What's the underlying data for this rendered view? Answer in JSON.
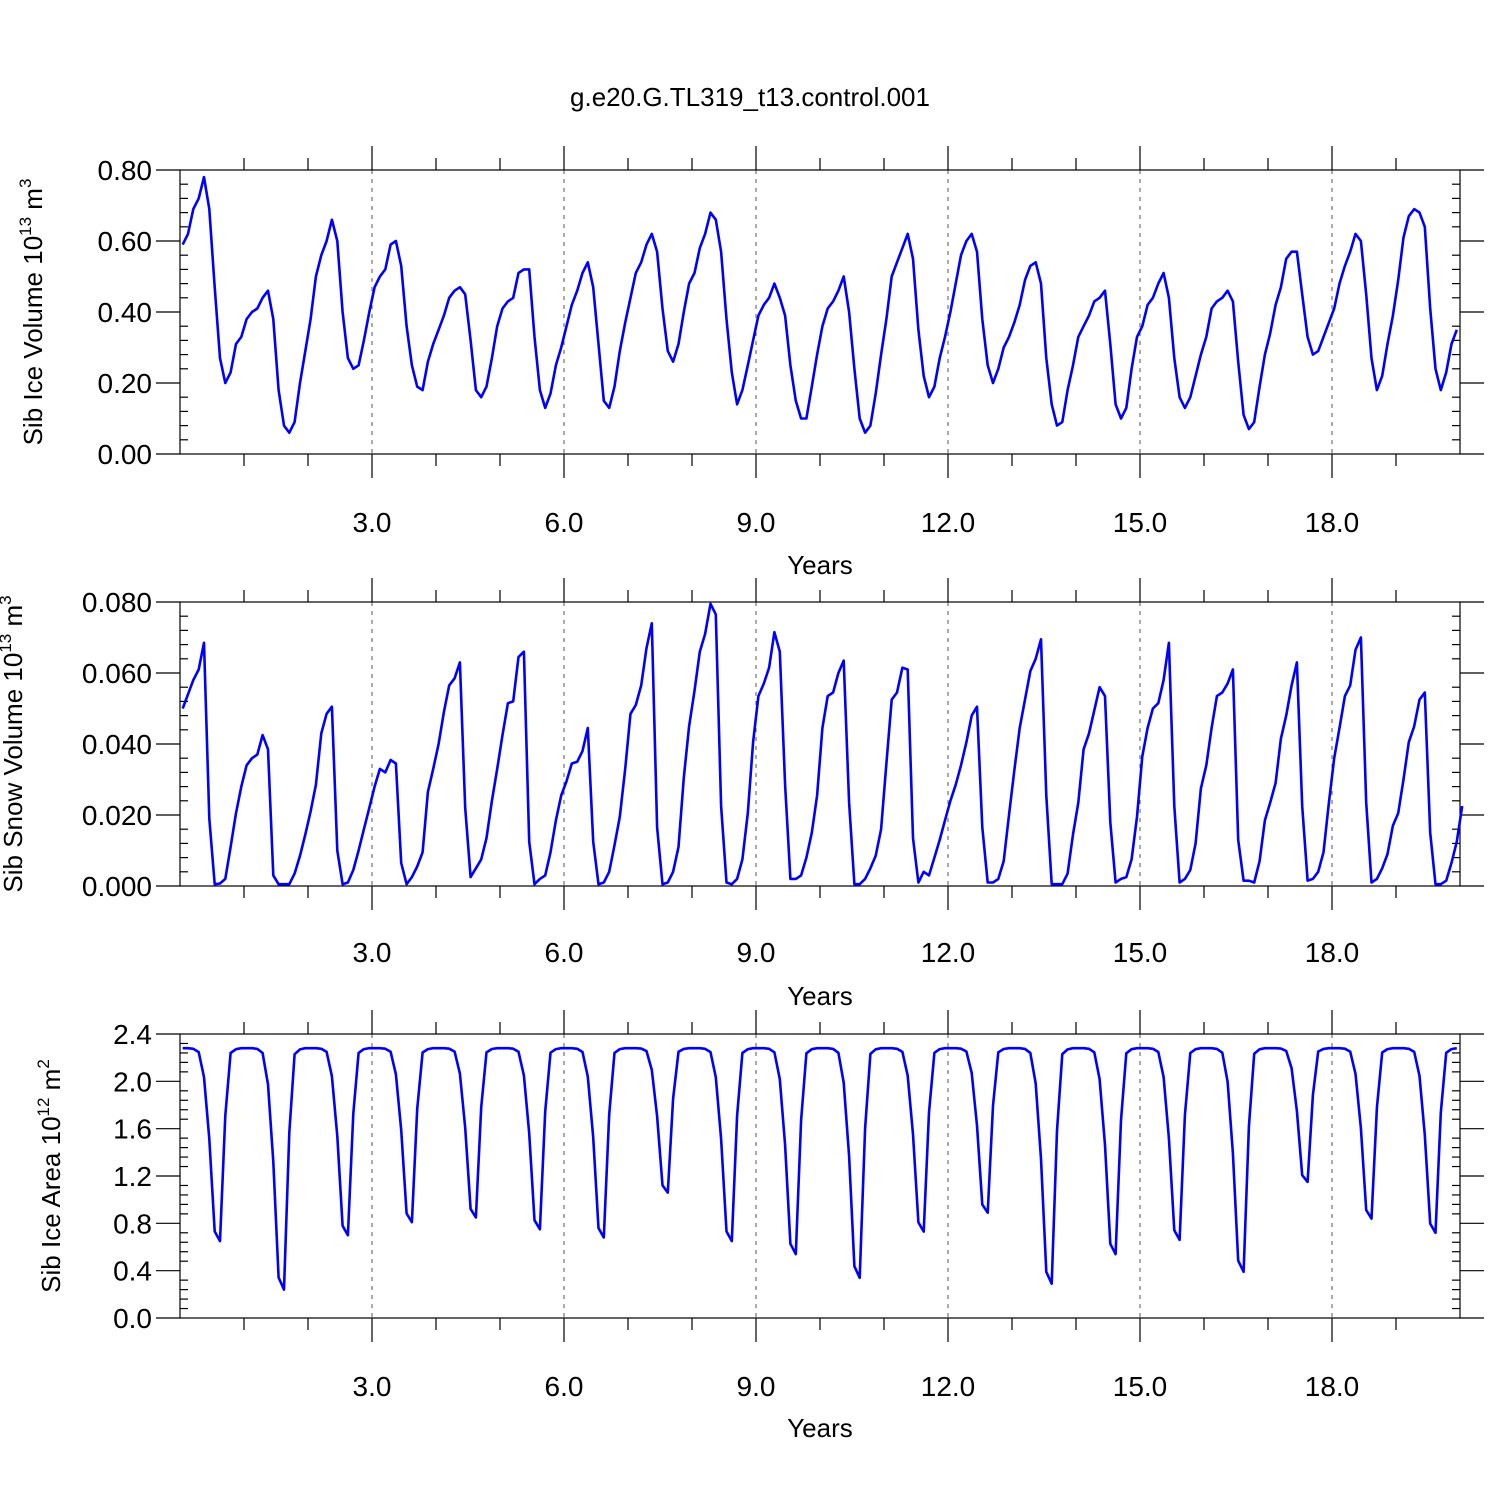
{
  "title": "g.e20.G.TL319_t13.control.001",
  "chart_data": [
    {
      "type": "line",
      "ylabel": "Sib Ice Volume 10",
      "ylabel_exp": "13",
      "ylabel_unit": " m",
      "ylabel_unit_exp": "3",
      "xlabel": "Years",
      "xlim": [
        0,
        20
      ],
      "ylim": [
        0,
        0.8
      ],
      "xticks": [
        3.0,
        6.0,
        9.0,
        12.0,
        15.0,
        18.0
      ],
      "xtick_labels": [
        "3.0",
        "6.0",
        "9.0",
        "12.0",
        "15.0",
        "18.0"
      ],
      "yticks": [
        0,
        0.2,
        0.4,
        0.6,
        0.8
      ],
      "ytick_labels": [
        "0.00",
        "0.20",
        "0.40",
        "0.60",
        "0.80"
      ],
      "vgrid_dashed": true,
      "color": "#0000ff",
      "x_start": 0.0417,
      "x_step": 0.0833,
      "values": [
        0.59,
        0.62,
        0.69,
        0.72,
        0.78,
        0.69,
        0.47,
        0.27,
        0.2,
        0.23,
        0.31,
        0.33,
        0.38,
        0.4,
        0.41,
        0.44,
        0.46,
        0.38,
        0.18,
        0.08,
        0.06,
        0.09,
        0.2,
        0.29,
        0.38,
        0.5,
        0.56,
        0.6,
        0.66,
        0.6,
        0.4,
        0.27,
        0.24,
        0.25,
        0.32,
        0.4,
        0.47,
        0.5,
        0.52,
        0.59,
        0.6,
        0.53,
        0.36,
        0.25,
        0.19,
        0.18,
        0.26,
        0.31,
        0.35,
        0.39,
        0.44,
        0.46,
        0.47,
        0.45,
        0.32,
        0.18,
        0.16,
        0.19,
        0.27,
        0.36,
        0.41,
        0.43,
        0.44,
        0.51,
        0.52,
        0.52,
        0.33,
        0.18,
        0.13,
        0.17,
        0.25,
        0.3,
        0.36,
        0.42,
        0.46,
        0.51,
        0.54,
        0.47,
        0.31,
        0.15,
        0.13,
        0.19,
        0.29,
        0.37,
        0.44,
        0.51,
        0.54,
        0.59,
        0.62,
        0.57,
        0.41,
        0.29,
        0.26,
        0.31,
        0.4,
        0.48,
        0.51,
        0.58,
        0.62,
        0.68,
        0.66,
        0.57,
        0.38,
        0.23,
        0.14,
        0.18,
        0.25,
        0.32,
        0.39,
        0.42,
        0.44,
        0.48,
        0.44,
        0.39,
        0.25,
        0.15,
        0.1,
        0.1,
        0.19,
        0.28,
        0.36,
        0.41,
        0.43,
        0.46,
        0.5,
        0.4,
        0.24,
        0.1,
        0.06,
        0.08,
        0.17,
        0.28,
        0.38,
        0.5,
        0.54,
        0.58,
        0.62,
        0.55,
        0.35,
        0.22,
        0.16,
        0.19,
        0.27,
        0.33,
        0.4,
        0.48,
        0.56,
        0.6,
        0.62,
        0.57,
        0.38,
        0.25,
        0.2,
        0.24,
        0.3,
        0.33,
        0.37,
        0.42,
        0.49,
        0.53,
        0.54,
        0.48,
        0.27,
        0.14,
        0.08,
        0.09,
        0.18,
        0.25,
        0.33,
        0.36,
        0.39,
        0.43,
        0.44,
        0.46,
        0.31,
        0.14,
        0.1,
        0.13,
        0.24,
        0.33,
        0.36,
        0.42,
        0.44,
        0.48,
        0.51,
        0.44,
        0.27,
        0.16,
        0.13,
        0.16,
        0.22,
        0.28,
        0.33,
        0.41,
        0.43,
        0.44,
        0.46,
        0.43,
        0.26,
        0.11,
        0.07,
        0.09,
        0.19,
        0.28,
        0.34,
        0.42,
        0.47,
        0.55,
        0.57,
        0.57,
        0.45,
        0.33,
        0.28,
        0.29,
        0.33,
        0.37,
        0.41,
        0.48,
        0.53,
        0.57,
        0.62,
        0.6,
        0.45,
        0.27,
        0.18,
        0.22,
        0.31,
        0.39,
        0.49,
        0.61,
        0.67,
        0.69,
        0.68,
        0.64,
        0.41,
        0.24,
        0.18,
        0.23,
        0.31,
        0.35
      ]
    },
    {
      "type": "line",
      "ylabel": "Sib Snow Volume 10",
      "ylabel_exp": "13",
      "ylabel_unit": " m",
      "ylabel_unit_exp": "3",
      "xlabel": "Years",
      "xlim": [
        0,
        20
      ],
      "ylim": [
        0,
        0.08
      ],
      "xticks": [
        3.0,
        6.0,
        9.0,
        12.0,
        15.0,
        18.0
      ],
      "xtick_labels": [
        "3.0",
        "6.0",
        "9.0",
        "12.0",
        "15.0",
        "18.0"
      ],
      "yticks": [
        0,
        0.02,
        0.04,
        0.06,
        0.08
      ],
      "ytick_labels": [
        "0.000",
        "0.020",
        "0.040",
        "0.060",
        "0.080"
      ],
      "vgrid_dashed": true,
      "color": "#0000ff",
      "x_start": 0.0417,
      "x_step": 0.0833,
      "values": [
        0.05,
        0.054,
        0.058,
        0.061,
        0.0685,
        0.019,
        0.0005,
        0.0007,
        0.002,
        0.011,
        0.0205,
        0.028,
        0.034,
        0.036,
        0.037,
        0.0425,
        0.0385,
        0.003,
        0.0005,
        0.0005,
        0.0005,
        0.0035,
        0.0085,
        0.0145,
        0.021,
        0.0285,
        0.043,
        0.0485,
        0.0505,
        0.01,
        0.0005,
        0.001,
        0.0045,
        0.01,
        0.016,
        0.022,
        0.028,
        0.033,
        0.032,
        0.0355,
        0.0345,
        0.0065,
        0.0005,
        0.0025,
        0.0055,
        0.0095,
        0.0265,
        0.033,
        0.04,
        0.049,
        0.0565,
        0.0585,
        0.063,
        0.022,
        0.0025,
        0.005,
        0.0075,
        0.0135,
        0.024,
        0.033,
        0.0425,
        0.0515,
        0.052,
        0.0645,
        0.066,
        0.0125,
        0.0005,
        0.002,
        0.003,
        0.0095,
        0.0185,
        0.0255,
        0.0295,
        0.0345,
        0.035,
        0.038,
        0.0445,
        0.0125,
        0.0005,
        0.001,
        0.004,
        0.0115,
        0.0195,
        0.033,
        0.0485,
        0.051,
        0.0565,
        0.067,
        0.074,
        0.0165,
        0.0005,
        0.001,
        0.004,
        0.011,
        0.0305,
        0.045,
        0.055,
        0.066,
        0.071,
        0.0795,
        0.0765,
        0.0225,
        0.001,
        0.0005,
        0.002,
        0.0075,
        0.0205,
        0.0405,
        0.0535,
        0.057,
        0.0615,
        0.0715,
        0.066,
        0.0285,
        0.002,
        0.002,
        0.003,
        0.008,
        0.015,
        0.0255,
        0.0445,
        0.0535,
        0.0545,
        0.06,
        0.0635,
        0.0235,
        0.0005,
        0.0005,
        0.002,
        0.005,
        0.0085,
        0.016,
        0.0345,
        0.0525,
        0.0545,
        0.0615,
        0.061,
        0.0135,
        0.001,
        0.004,
        0.003,
        0.008,
        0.013,
        0.0185,
        0.024,
        0.0285,
        0.034,
        0.0405,
        0.048,
        0.0505,
        0.0165,
        0.001,
        0.001,
        0.002,
        0.007,
        0.02,
        0.0325,
        0.0445,
        0.0525,
        0.0605,
        0.064,
        0.0695,
        0.0255,
        0.0005,
        0.0005,
        0.0005,
        0.0035,
        0.0145,
        0.0235,
        0.0385,
        0.043,
        0.0495,
        0.056,
        0.0535,
        0.018,
        0.001,
        0.002,
        0.0025,
        0.0075,
        0.0195,
        0.0365,
        0.0445,
        0.05,
        0.0515,
        0.058,
        0.0685,
        0.0225,
        0.001,
        0.002,
        0.0045,
        0.012,
        0.0275,
        0.034,
        0.0445,
        0.0535,
        0.0545,
        0.057,
        0.061,
        0.013,
        0.0015,
        0.0015,
        0.001,
        0.007,
        0.0185,
        0.0235,
        0.029,
        0.0415,
        0.048,
        0.0565,
        0.063,
        0.0225,
        0.0015,
        0.002,
        0.004,
        0.0095,
        0.0235,
        0.036,
        0.0445,
        0.0535,
        0.0565,
        0.0665,
        0.07,
        0.0235,
        0.001,
        0.002,
        0.005,
        0.009,
        0.017,
        0.0205,
        0.03,
        0.0405,
        0.045,
        0.0525,
        0.0545,
        0.015,
        0.0005,
        0.0005,
        0.0015,
        0.0065,
        0.0125,
        0.0225
      ]
    },
    {
      "type": "line",
      "ylabel": "Sib Ice Area 10",
      "ylabel_exp": "12",
      "ylabel_unit": " m",
      "ylabel_unit_exp": "2",
      "xlabel": "Years",
      "xlim": [
        0,
        20
      ],
      "ylim": [
        0,
        2.4
      ],
      "xticks": [
        3.0,
        6.0,
        9.0,
        12.0,
        15.0,
        18.0
      ],
      "xtick_labels": [
        "3.0",
        "6.0",
        "9.0",
        "12.0",
        "15.0",
        "18.0"
      ],
      "yticks": [
        0,
        0.4,
        0.8,
        1.2,
        1.6,
        2.0,
        2.4
      ],
      "ytick_labels": [
        "0.0",
        "0.4",
        "0.8",
        "1.2",
        "1.6",
        "2.0",
        "2.4"
      ],
      "vgrid_dashed": true,
      "color": "#0000ff",
      "x_start": 0.0417,
      "x_step": 0.0833,
      "annual_min": [
        0.65,
        0.24,
        0.7,
        0.81,
        0.85,
        0.75,
        0.68,
        1.06,
        0.65,
        0.54,
        0.34,
        0.73,
        0.89,
        0.29,
        0.54,
        0.66,
        0.39,
        1.15,
        0.84,
        0.72
      ],
      "cycle_shape": [
        1.0,
        1.0,
        0.997,
        0.98,
        0.85,
        0.53,
        0.05,
        0.0,
        0.65,
        0.975,
        0.995,
        1.0
      ],
      "summer_max": 2.28
    }
  ]
}
